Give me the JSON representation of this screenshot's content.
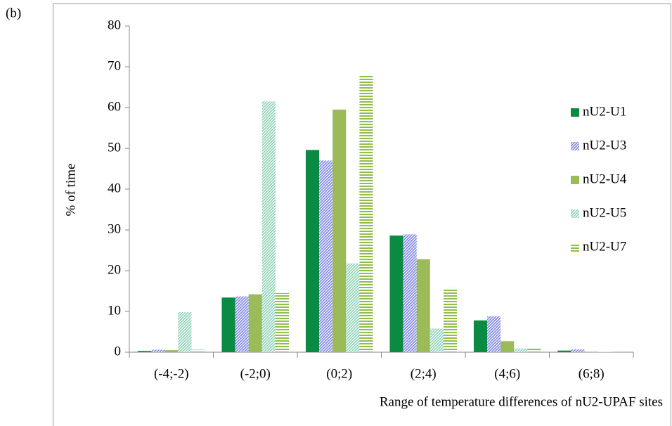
{
  "chart_data": {
    "type": "bar",
    "panel_label": "(b)",
    "y_label": "% of time",
    "x_label": "Range of temperature differences of nU2-UPAF sites",
    "categories": [
      "(-4;-2)",
      "(-2;0)",
      "(0;2)",
      "(2;4)",
      "(4;6)",
      "(6;8)"
    ],
    "series": [
      {
        "name": "nU2-U1",
        "color": "#0a8a42",
        "pattern": "solid",
        "values": [
          0.3,
          13.4,
          49.6,
          28.6,
          7.8,
          0.4
        ]
      },
      {
        "name": "nU2-U3",
        "color": "#7f84e6",
        "pattern": "diagonal",
        "values": [
          0.6,
          13.7,
          47,
          28.9,
          8.8,
          0.7
        ]
      },
      {
        "name": "nU2-U4",
        "color": "#9bbb59",
        "pattern": "solid",
        "values": [
          0.5,
          14.2,
          59.5,
          22.8,
          2.7,
          0.1
        ]
      },
      {
        "name": "nU2-U5",
        "color": "#8fd2b6",
        "pattern": "diagonal",
        "values": [
          9.8,
          61.5,
          21.8,
          5.8,
          0.9,
          0.1
        ]
      },
      {
        "name": "nU2-U7",
        "color": "#8fbf4a",
        "pattern": "horizontal",
        "values": [
          0.6,
          14.5,
          67.8,
          15.7,
          1.1,
          0.1
        ]
      }
    ],
    "ylim": [
      0,
      80
    ],
    "yticks": [
      0,
      10,
      20,
      30,
      40,
      50,
      60,
      70,
      80
    ],
    "legend": "right"
  }
}
